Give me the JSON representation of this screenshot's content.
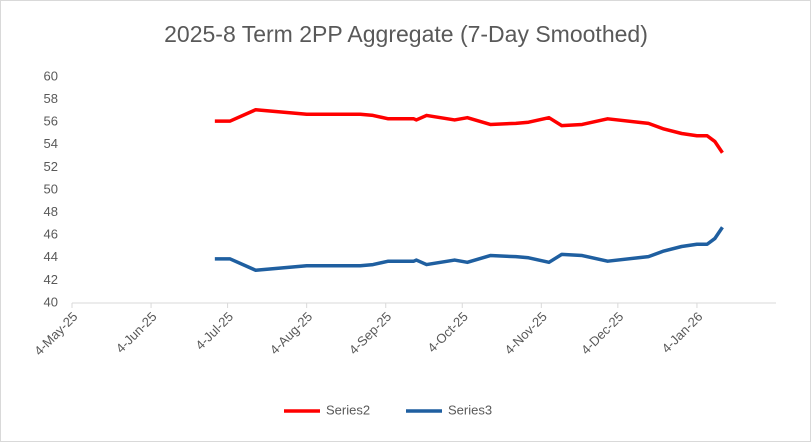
{
  "chart_data": {
    "type": "line",
    "title": "2025-8 Term 2PP Aggregate (7-Day Smoothed)",
    "x": [
      "2025-06-29",
      "2025-07-05",
      "2025-07-15",
      "2025-07-25",
      "2025-08-04",
      "2025-08-25",
      "2025-08-30",
      "2025-09-05",
      "2025-09-15",
      "2025-09-16",
      "2025-09-20",
      "2025-10-01",
      "2025-10-06",
      "2025-10-15",
      "2025-10-25",
      "2025-10-30",
      "2025-11-07",
      "2025-11-12",
      "2025-11-20",
      "2025-11-30",
      "2025-12-12",
      "2025-12-16",
      "2025-12-22",
      "2025-12-29",
      "2026-01-04",
      "2026-01-08",
      "2026-01-11",
      "2026-01-14"
    ],
    "series": [
      {
        "name": "Series2",
        "color": "#ff0000",
        "values": [
          56.1,
          56.1,
          57.1,
          56.9,
          56.7,
          56.7,
          56.6,
          56.3,
          56.3,
          56.2,
          56.6,
          56.2,
          56.4,
          55.8,
          55.9,
          56.0,
          56.4,
          55.7,
          55.8,
          56.3,
          56.0,
          55.9,
          55.4,
          55.0,
          54.8,
          54.8,
          54.3,
          53.3
        ]
      },
      {
        "name": "Series3",
        "color": "#1f5fa0",
        "values": [
          43.9,
          43.9,
          42.9,
          43.1,
          43.3,
          43.3,
          43.4,
          43.7,
          43.7,
          43.8,
          43.4,
          43.8,
          43.6,
          44.2,
          44.1,
          44.0,
          43.6,
          44.3,
          44.2,
          43.7,
          44.0,
          44.1,
          44.6,
          45.0,
          45.2,
          45.2,
          45.7,
          46.7
        ]
      }
    ],
    "xlim": [
      "2025-05-04",
      "2026-02-04"
    ],
    "xticks": [
      {
        "value": "2025-05-04",
        "label": "4-May-25"
      },
      {
        "value": "2025-06-04",
        "label": "4-Jun-25"
      },
      {
        "value": "2025-07-04",
        "label": "4-Jul-25"
      },
      {
        "value": "2025-08-04",
        "label": "4-Aug-25"
      },
      {
        "value": "2025-09-04",
        "label": "4-Sep-25"
      },
      {
        "value": "2025-10-04",
        "label": "4-Oct-25"
      },
      {
        "value": "2025-11-04",
        "label": "4-Nov-25"
      },
      {
        "value": "2025-12-04",
        "label": "4-Dec-25"
      },
      {
        "value": "2026-01-04",
        "label": "4-Jan-26"
      }
    ],
    "ylim": [
      40,
      60
    ],
    "yticks": [
      40,
      42,
      44,
      46,
      48,
      50,
      52,
      54,
      56,
      58,
      60
    ],
    "grid": false,
    "legend": "bottom"
  }
}
